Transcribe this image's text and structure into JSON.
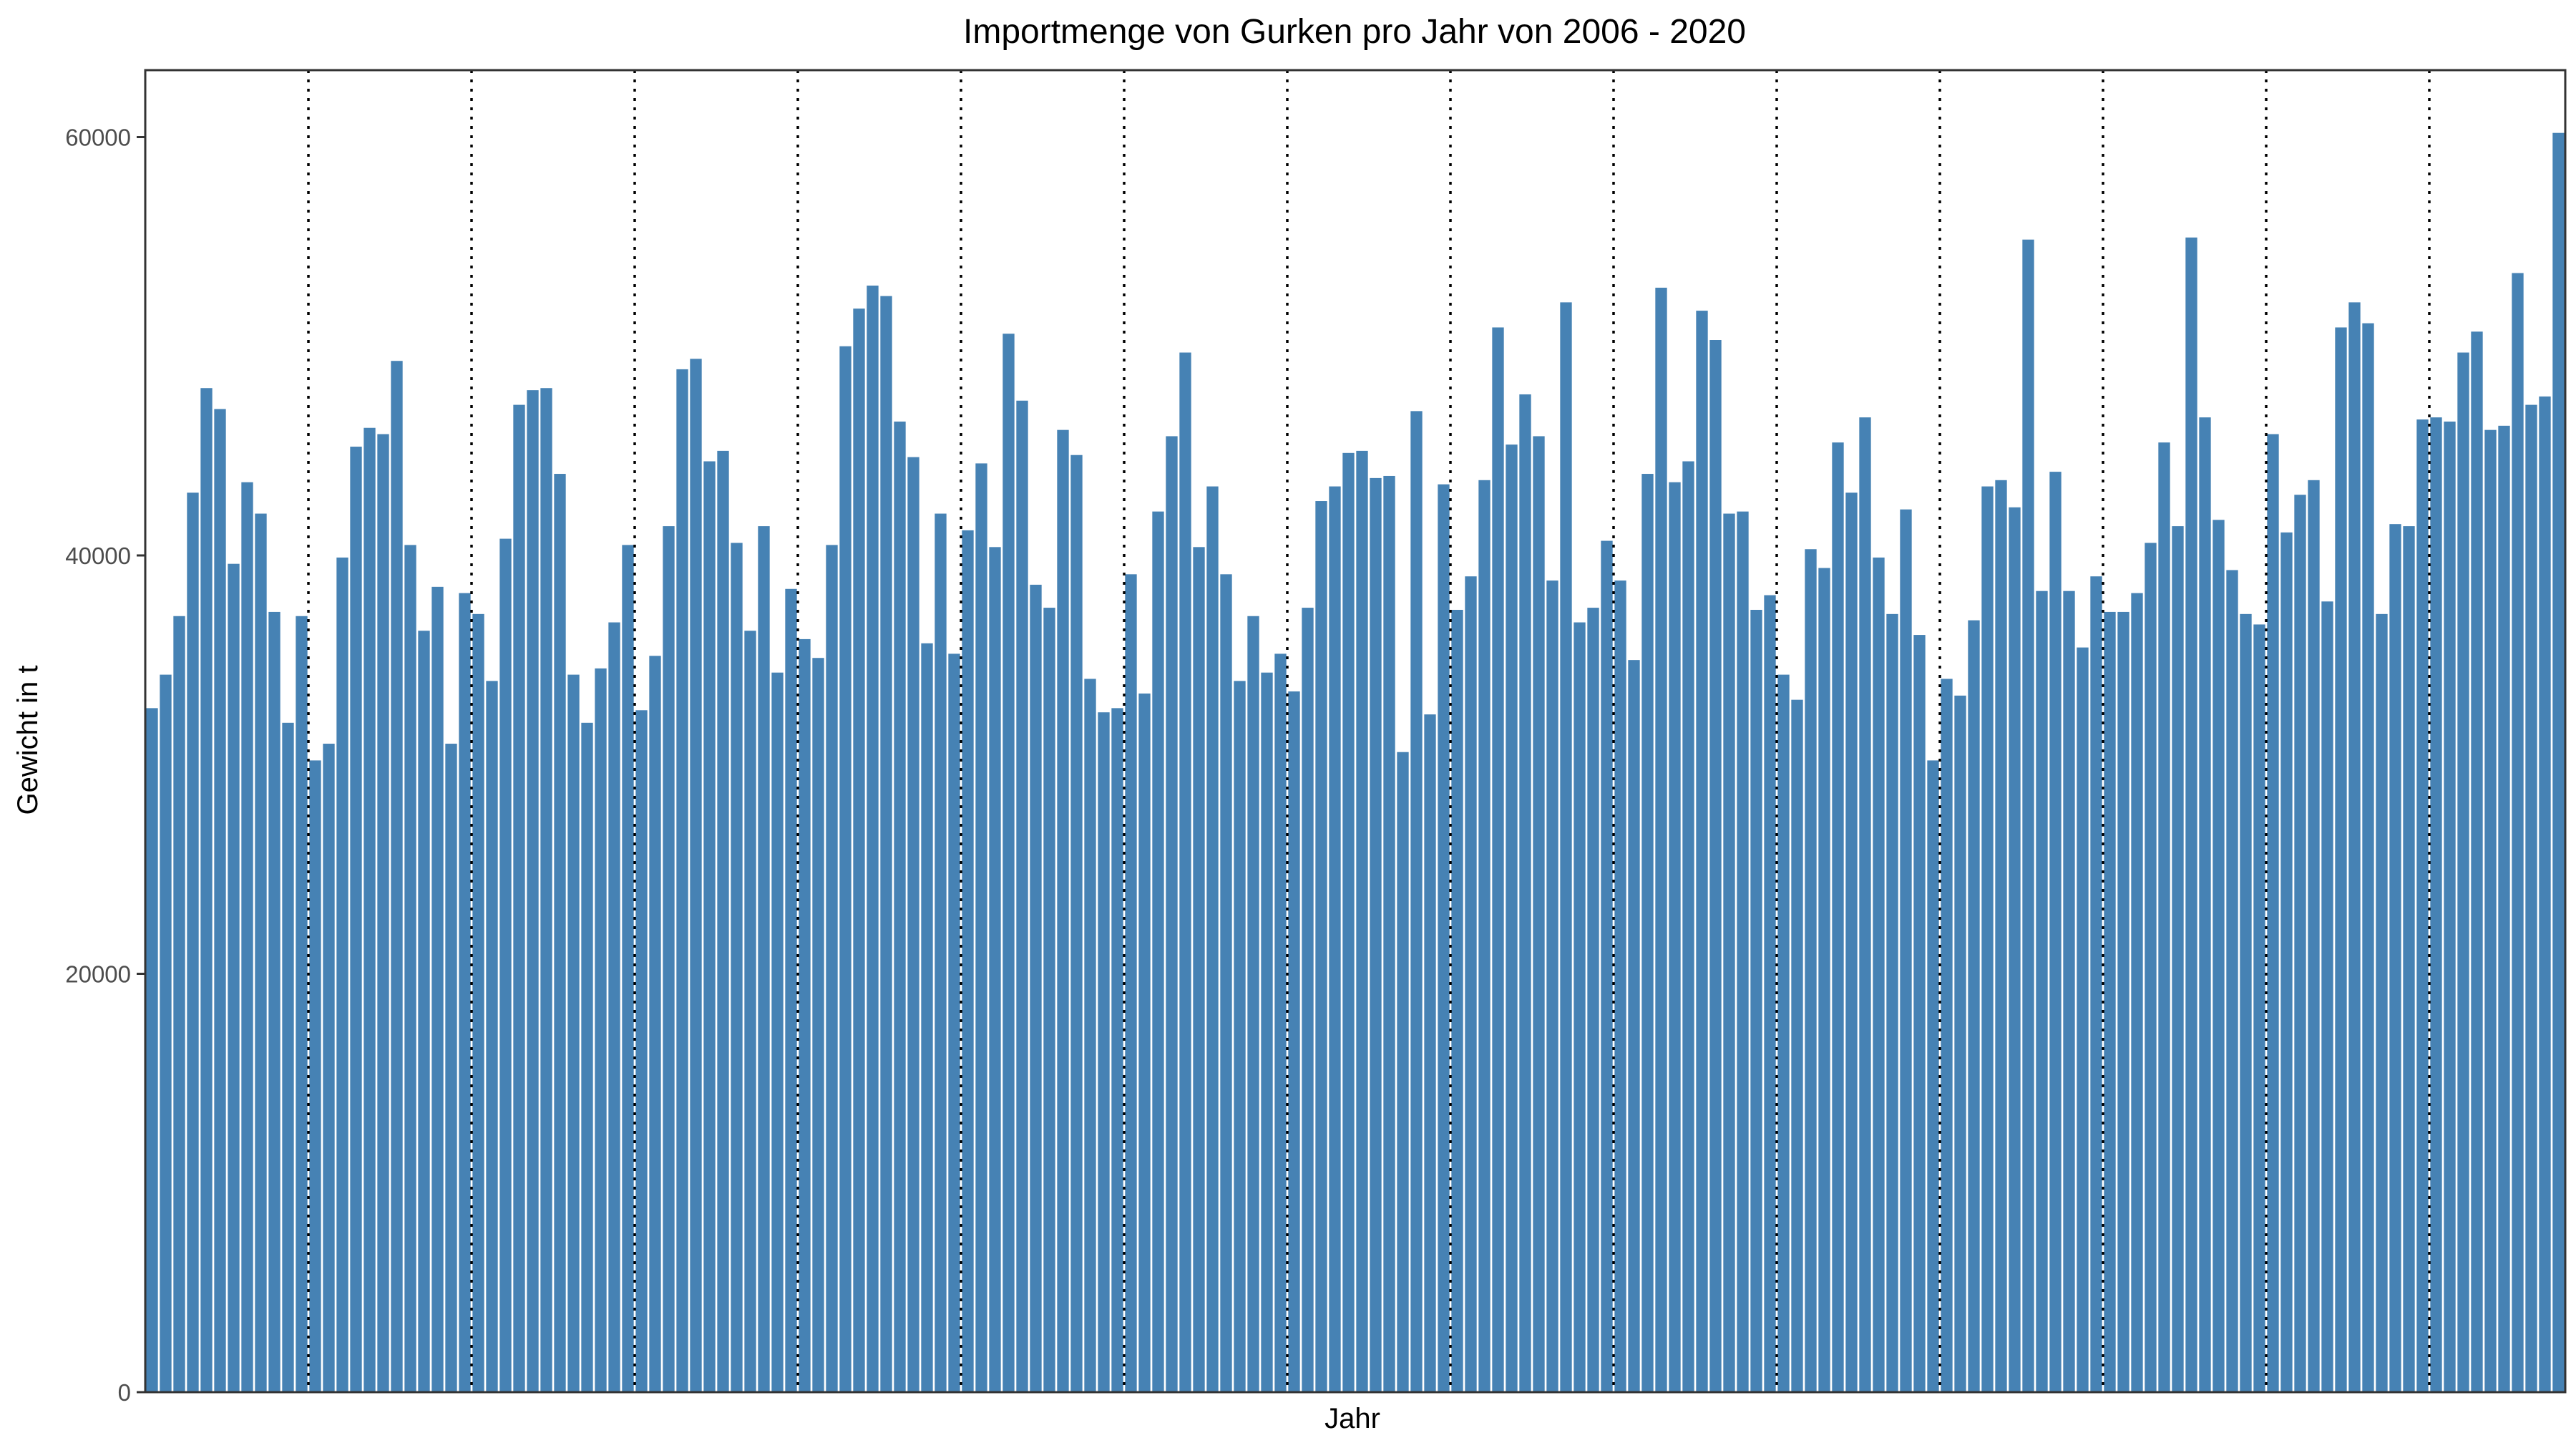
{
  "chart_data": {
    "type": "bar",
    "title": "Importmenge von Gurken pro Jahr von 2006 - 2020",
    "xlabel": "Jahr",
    "ylabel": "Gewicht in t",
    "ylim": [
      0,
      63200
    ],
    "yticks": [
      {
        "value": 0,
        "label": "0"
      },
      {
        "value": 20000,
        "label": "20000"
      },
      {
        "value": 40000,
        "label": "40000"
      },
      {
        "value": 60000,
        "label": "60000"
      }
    ],
    "grid": false,
    "year_separators_after_bar": [
      12,
      24,
      36,
      48,
      60,
      72,
      84,
      96,
      108,
      120,
      132,
      144,
      156,
      168
    ],
    "colors": {
      "bar": "#4682B4",
      "separator": "#000000",
      "frame": "#333333"
    },
    "values": [
      32700,
      34300,
      37100,
      43000,
      48000,
      47000,
      39600,
      43500,
      42000,
      37300,
      32000,
      37100,
      30200,
      31000,
      39900,
      45200,
      46100,
      45800,
      49300,
      40500,
      36400,
      38500,
      31000,
      38200,
      37200,
      34000,
      40800,
      47200,
      47900,
      48000,
      43900,
      34300,
      32000,
      34600,
      36800,
      40500,
      32600,
      35200,
      41400,
      48900,
      49400,
      44500,
      45000,
      40600,
      36400,
      41400,
      34400,
      38400,
      36000,
      35100,
      40500,
      50000,
      51800,
      52900,
      52400,
      46400,
      44700,
      35800,
      42000,
      35300,
      41200,
      44400,
      40400,
      50600,
      47400,
      38600,
      37500,
      46000,
      44800,
      34100,
      32500,
      32700,
      39100,
      33400,
      42100,
      45700,
      49700,
      40400,
      43300,
      39100,
      34000,
      37100,
      34400,
      35300,
      33500,
      37500,
      42600,
      43300,
      44900,
      45000,
      43700,
      43800,
      30600,
      46900,
      32400,
      43400,
      37400,
      39000,
      43600,
      50900,
      45300,
      47700,
      45700,
      38800,
      52100,
      36800,
      37500,
      40700,
      38800,
      35000,
      43900,
      52800,
      43500,
      44500,
      51700,
      50300,
      42000,
      42100,
      37400,
      38100,
      34300,
      33100,
      40300,
      39400,
      45400,
      43000,
      46600,
      39900,
      37200,
      42200,
      36200,
      30200,
      34100,
      33300,
      36900,
      43300,
      43600,
      42300,
      55100,
      38300,
      44000,
      38300,
      35600,
      39000,
      37300,
      37300,
      38200,
      40600,
      45400,
      41400,
      55200,
      46600,
      41700,
      39300,
      37200,
      36700,
      45800,
      41100,
      42900,
      43600,
      37800,
      50900,
      52100,
      51100,
      37200,
      41500,
      41400,
      46500,
      46600,
      46400,
      49700,
      50700,
      46000,
      46200,
      53500,
      47200,
      47600,
      60200
    ]
  }
}
